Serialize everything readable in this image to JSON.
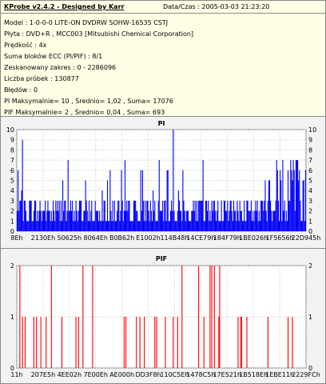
{
  "header": {
    "title": "KProbe v2.4.2 - Designed by Karr",
    "date": "Data/Czas : 2005-03-03 21:23:20"
  },
  "info_lines": [
    "Model : 1-0-0-0 LITE-ON DVDRW SOHW-16535 CSTJ",
    "Płyta : DVD+R , MCC003 [Mitsubishi Chemical Corporation]",
    "Prędkość : 4x",
    "Suma bloków ECC (PI/PIF) : 8/1",
    "Zeskanowany zakres : 0 - 2286096",
    "Liczba próbek : 130877",
    "Błędów : 0",
    "PI Maksymalnie= 10 , Średnio= 1,02 , Suma= 17076",
    "PIF Maksymalnie= 2 , Średnio= 0,04 , Suma= 693"
  ],
  "chart_data": [
    {
      "type": "bar",
      "title": "PI",
      "bar_color": "#0000ff",
      "ylim": [
        0,
        10
      ],
      "yticks": [
        "0",
        "1",
        "2",
        "3",
        "4",
        "5",
        "6",
        "7",
        "8",
        "9",
        "10"
      ],
      "xticks": [
        "8Eh",
        "2130Eh",
        "5062 5h",
        "8064Eh",
        "B0B62h",
        "E1002h",
        "114B48h",
        "14CE79h",
        "184F79h",
        "1BE026h",
        "1F5656h",
        "22D945h"
      ],
      "grid": true,
      "n_points": 330,
      "max": 10,
      "average": 1.02
    },
    {
      "type": "bar",
      "title": "PIF",
      "bar_color": "#ff0000",
      "ylim": [
        0,
        2
      ],
      "yticks": [
        "0",
        "1",
        "2"
      ],
      "xticks": [
        "11h",
        "207E5h",
        "4EE02h",
        "7E00Eh",
        "AE000h",
        "DD3F8h",
        "110C5Eh",
        "1478C5h",
        "17E521h",
        "1B518Eh",
        "1EBE11h",
        "2229FCh"
      ],
      "grid": true,
      "n_points": 330,
      "max": 2,
      "average": 0.04
    }
  ]
}
